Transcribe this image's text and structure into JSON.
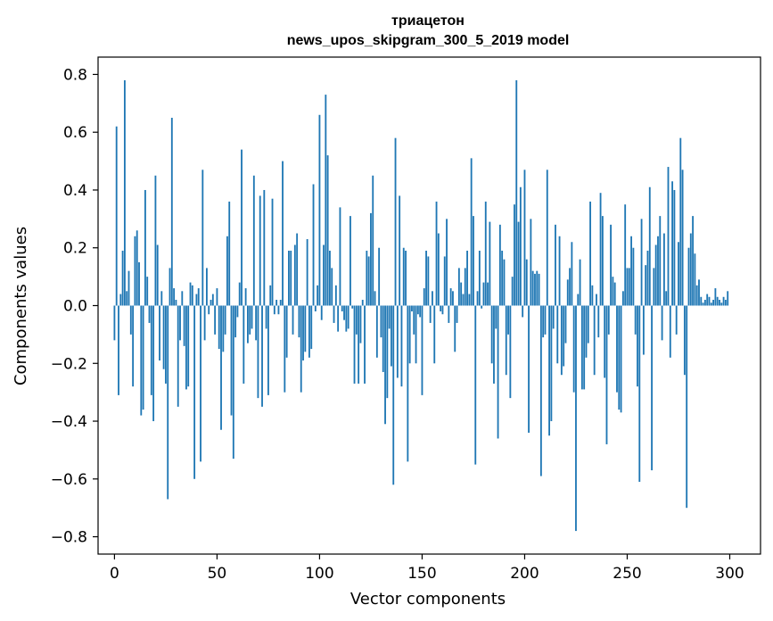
{
  "chart_data": {
    "type": "bar",
    "title": "триацетон",
    "subtitle": "news_upos_skipgram_300_5_2019 model",
    "xlabel": "Vector components",
    "ylabel": "Components values",
    "xlim": [
      -8,
      315
    ],
    "ylim": [
      -0.86,
      0.86
    ],
    "xticks": [
      0,
      50,
      100,
      150,
      200,
      250,
      300
    ],
    "yticks": [
      -0.8,
      -0.6,
      -0.4,
      -0.2,
      0.0,
      0.2,
      0.4,
      0.6,
      0.8
    ],
    "ytick_labels": [
      "−0.8",
      "−0.6",
      "−0.4",
      "−0.2",
      "0.0",
      "0.2",
      "0.4",
      "0.6",
      "0.8"
    ],
    "bar_color": "#1f77b4",
    "grid": false,
    "x": [
      0,
      1,
      2,
      3,
      4,
      5,
      6,
      7,
      8,
      9,
      10,
      11,
      12,
      13,
      14,
      15,
      16,
      17,
      18,
      19,
      20,
      21,
      22,
      23,
      24,
      25,
      26,
      27,
      28,
      29,
      30,
      31,
      32,
      33,
      34,
      35,
      36,
      37,
      38,
      39,
      40,
      41,
      42,
      43,
      44,
      45,
      46,
      47,
      48,
      49,
      50,
      51,
      52,
      53,
      54,
      55,
      56,
      57,
      58,
      59,
      60,
      61,
      62,
      63,
      64,
      65,
      66,
      67,
      68,
      69,
      70,
      71,
      72,
      73,
      74,
      75,
      76,
      77,
      78,
      79,
      80,
      81,
      82,
      83,
      84,
      85,
      86,
      87,
      88,
      89,
      90,
      91,
      92,
      93,
      94,
      95,
      96,
      97,
      98,
      99,
      100,
      101,
      102,
      103,
      104,
      105,
      106,
      107,
      108,
      109,
      110,
      111,
      112,
      113,
      114,
      115,
      116,
      117,
      118,
      119,
      120,
      121,
      122,
      123,
      124,
      125,
      126,
      127,
      128,
      129,
      130,
      131,
      132,
      133,
      134,
      135,
      136,
      137,
      138,
      139,
      140,
      141,
      142,
      143,
      144,
      145,
      146,
      147,
      148,
      149,
      150,
      151,
      152,
      153,
      154,
      155,
      156,
      157,
      158,
      159,
      160,
      161,
      162,
      163,
      164,
      165,
      166,
      167,
      168,
      169,
      170,
      171,
      172,
      173,
      174,
      175,
      176,
      177,
      178,
      179,
      180,
      181,
      182,
      183,
      184,
      185,
      186,
      187,
      188,
      189,
      190,
      191,
      192,
      193,
      194,
      195,
      196,
      197,
      198,
      199,
      200,
      201,
      202,
      203,
      204,
      205,
      206,
      207,
      208,
      209,
      210,
      211,
      212,
      213,
      214,
      215,
      216,
      217,
      218,
      219,
      220,
      221,
      222,
      223,
      224,
      225,
      226,
      227,
      228,
      229,
      230,
      231,
      232,
      233,
      234,
      235,
      236,
      237,
      238,
      239,
      240,
      241,
      242,
      243,
      244,
      245,
      246,
      247,
      248,
      249,
      250,
      251,
      252,
      253,
      254,
      255,
      256,
      257,
      258,
      259,
      260,
      261,
      262,
      263,
      264,
      265,
      266,
      267,
      268,
      269,
      270,
      271,
      272,
      273,
      274,
      275,
      276,
      277,
      278,
      279,
      280,
      281,
      282,
      283,
      284,
      285,
      286,
      287,
      288,
      289,
      290,
      291,
      292,
      293,
      294,
      295,
      296,
      297,
      298,
      299
    ],
    "values": [
      -0.12,
      0.62,
      -0.31,
      0.04,
      0.19,
      0.78,
      0.05,
      0.12,
      -0.1,
      -0.28,
      0.24,
      0.26,
      0.15,
      -0.38,
      -0.36,
      0.4,
      0.1,
      -0.06,
      -0.31,
      -0.4,
      0.45,
      0.21,
      -0.19,
      0.05,
      -0.22,
      -0.27,
      -0.67,
      0.13,
      0.65,
      0.06,
      0.02,
      -0.35,
      -0.12,
      0.05,
      -0.14,
      -0.29,
      -0.28,
      0.08,
      0.07,
      -0.6,
      0.04,
      0.06,
      -0.54,
      0.47,
      -0.12,
      0.13,
      -0.03,
      0.02,
      0.04,
      -0.1,
      0.06,
      -0.15,
      -0.43,
      -0.16,
      -0.1,
      0.24,
      0.36,
      -0.38,
      -0.53,
      -0.11,
      -0.04,
      0.08,
      0.54,
      -0.27,
      0.06,
      -0.13,
      -0.1,
      -0.08,
      0.45,
      -0.12,
      -0.32,
      0.38,
      -0.35,
      0.4,
      -0.08,
      -0.31,
      0.07,
      0.37,
      -0.03,
      0.02,
      -0.03,
      0.02,
      0.5,
      -0.3,
      -0.18,
      0.19,
      0.19,
      -0.1,
      0.21,
      0.25,
      -0.11,
      -0.3,
      -0.19,
      -0.16,
      0.23,
      -0.18,
      -0.15,
      0.42,
      -0.02,
      0.07,
      0.66,
      -0.05,
      0.21,
      0.73,
      0.52,
      0.19,
      0.13,
      -0.06,
      0.07,
      -0.09,
      0.34,
      -0.02,
      -0.05,
      -0.09,
      -0.08,
      0.31,
      -0.01,
      -0.27,
      -0.1,
      -0.27,
      -0.13,
      0.02,
      -0.27,
      0.19,
      0.17,
      0.32,
      0.45,
      0.05,
      -0.18,
      0.2,
      -0.11,
      -0.23,
      -0.41,
      -0.32,
      -0.08,
      -0.21,
      -0.62,
      0.58,
      -0.25,
      0.38,
      -0.28,
      0.2,
      0.19,
      -0.54,
      -0.2,
      -0.02,
      -0.1,
      -0.2,
      -0.03,
      -0.04,
      -0.31,
      0.06,
      0.19,
      0.17,
      -0.06,
      0.05,
      -0.2,
      0.36,
      0.25,
      -0.02,
      -0.03,
      0.17,
      0.3,
      -0.06,
      0.06,
      0.05,
      -0.16,
      -0.06,
      0.13,
      0.08,
      0.04,
      0.13,
      0.19,
      0.04,
      0.51,
      0.31,
      -0.55,
      0.05,
      0.19,
      -0.01,
      0.08,
      0.36,
      0.08,
      0.29,
      -0.2,
      -0.27,
      -0.08,
      -0.46,
      0.28,
      0.19,
      0.16,
      -0.24,
      -0.1,
      -0.32,
      0.1,
      0.35,
      0.78,
      0.29,
      0.41,
      -0.04,
      0.47,
      0.16,
      -0.44,
      0.3,
      0.12,
      0.11,
      0.12,
      0.11,
      -0.59,
      -0.11,
      -0.1,
      0.47,
      -0.45,
      -0.4,
      -0.08,
      0.28,
      -0.2,
      0.24,
      -0.24,
      -0.21,
      -0.13,
      0.09,
      0.13,
      0.22,
      -0.3,
      -0.78,
      0.04,
      0.16,
      -0.29,
      -0.29,
      -0.18,
      -0.13,
      0.36,
      0.07,
      -0.24,
      0.04,
      -0.11,
      0.39,
      0.31,
      -0.25,
      -0.48,
      -0.1,
      0.28,
      0.1,
      0.08,
      -0.3,
      -0.36,
      -0.37,
      0.05,
      0.35,
      0.13,
      0.13,
      0.24,
      0.2,
      -0.1,
      -0.28,
      -0.61,
      0.3,
      -0.17,
      0.14,
      0.19,
      0.41,
      -0.57,
      0.13,
      0.21,
      0.24,
      0.31,
      -0.12,
      0.25,
      0.05,
      0.48,
      -0.18,
      0.43,
      0.4,
      -0.1,
      0.22,
      0.58,
      0.47,
      -0.24,
      -0.7,
      0.2,
      0.25,
      0.31,
      0.18,
      0.07,
      0.09,
      0.03,
      0.01,
      0.02,
      0.04,
      0.03,
      0.01,
      0.02,
      0.06,
      0.03,
      0.02,
      0.01,
      0.03,
      0.02,
      0.05
    ]
  }
}
